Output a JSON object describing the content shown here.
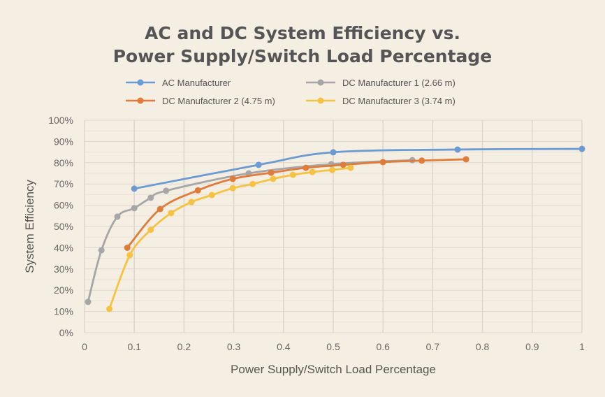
{
  "chart_data": {
    "type": "line",
    "title": [
      "AC and DC System Efficiency vs.",
      "Power Supply/Switch Load Percentage"
    ],
    "xlabel": "Power Supply/Switch Load Percentage",
    "ylabel": "System Efficiency",
    "xlim": [
      0,
      1
    ],
    "ylim": [
      0,
      100
    ],
    "x_ticks": [
      "0",
      "0.1",
      "0.2",
      "0.3",
      "0.4",
      "0.5",
      "0.6",
      "0.7",
      "0.8",
      "0.9",
      "1"
    ],
    "y_ticks": [
      "0%",
      "10%",
      "20%",
      "30%",
      "40%",
      "50%",
      "60%",
      "70%",
      "80%",
      "90%",
      "100%"
    ],
    "grid": true,
    "legend_position": "top",
    "series": [
      {
        "name": "AC Manufacturer",
        "color": "#6b9bd2",
        "x": [
          0.1,
          0.35,
          0.5,
          0.75,
          1.0
        ],
        "y": [
          67.8,
          79,
          84.9,
          86.2,
          86.5
        ]
      },
      {
        "name": "DC Manufacturer 1 (2.66 m)",
        "color": "#a6a6a6",
        "x": [
          0.007,
          0.034,
          0.066,
          0.1,
          0.133,
          0.164,
          0.33,
          0.496,
          0.659
        ],
        "y": [
          14.5,
          38.8,
          54.6,
          58.6,
          63.5,
          66.8,
          75,
          79.3,
          81.2
        ]
      },
      {
        "name": "DC Manufacturer 2 (4.75 m)",
        "color": "#e07b39",
        "x": [
          0.086,
          0.152,
          0.228,
          0.298,
          0.375,
          0.445,
          0.52,
          0.6,
          0.678,
          0.767
        ],
        "y": [
          40,
          58.2,
          67,
          72.4,
          75.3,
          77.6,
          79,
          80.3,
          81,
          81.6
        ]
      },
      {
        "name": "DC Manufacturer 3 (3.74 m)",
        "color": "#f5c242",
        "x": [
          0.05,
          0.091,
          0.133,
          0.174,
          0.215,
          0.256,
          0.298,
          0.338,
          0.379,
          0.419,
          0.458,
          0.498,
          0.535
        ],
        "y": [
          11.2,
          36.5,
          48.4,
          56.3,
          61.5,
          64.8,
          68,
          70,
          72.4,
          74.3,
          75.6,
          76.6,
          77.6
        ]
      }
    ]
  }
}
